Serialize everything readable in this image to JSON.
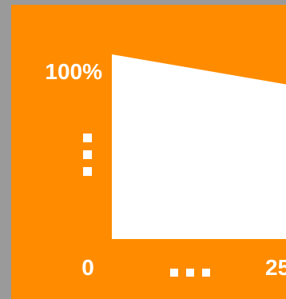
{
  "colors": {
    "background": "#9a9a9a",
    "panel": "#ff8c00",
    "area": "#ffffff",
    "text": "#ffffff"
  },
  "chart_data": {
    "type": "area",
    "title": "",
    "xlabel": "",
    "ylabel": "",
    "x_tick_labels": [
      "0",
      "...",
      "25"
    ],
    "y_tick_labels": [
      "100%",
      "..."
    ],
    "series": [
      {
        "x": [
          0,
          25
        ],
        "values": [
          100,
          75
        ]
      }
    ],
    "xlim": [
      0,
      25
    ],
    "ylim": [
      0,
      100
    ],
    "grid": false,
    "legend": "none"
  }
}
